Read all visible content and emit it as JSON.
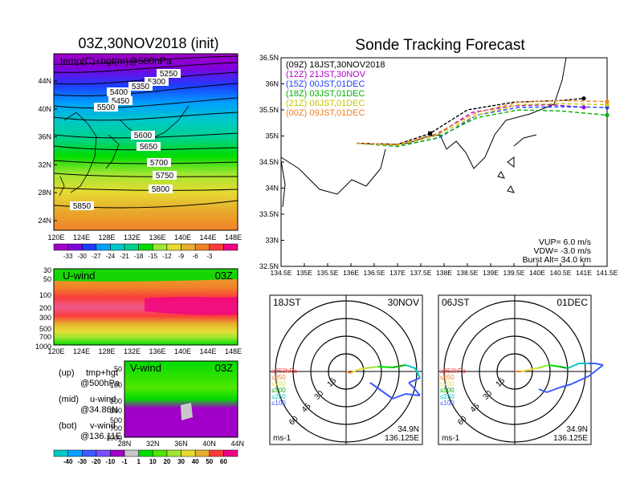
{
  "colors": {
    "temp_scale": [
      "#a000c8",
      "#8200dc",
      "#1e3cff",
      "#00a0ff",
      "#00c8c8",
      "#00d28c",
      "#00dc00",
      "#a0e632",
      "#e6dc32",
      "#e6af2d",
      "#f08228",
      "#fa3c3c",
      "#f00082"
    ],
    "wind_scale": [
      "#00c8c8",
      "#00a0ff",
      "#3c5aff",
      "#7850ff",
      "#a000c8",
      "#c8c8c8",
      "#00dc00",
      "#50e600",
      "#a0e632",
      "#e6dc32",
      "#e6af2d",
      "#fa3c3c",
      "#f00082"
    ],
    "tracks": {
      "09Z": "#000000",
      "12Z": "#b000c8",
      "15Z": "#2040ff",
      "18Z": "#00b000",
      "21Z": "#c8c800",
      "00Z": "#f08020"
    }
  },
  "left": {
    "map_title": "03Z,30NOV2018 (init)",
    "map_label": "temp(C)+hgt(m)@500hPa",
    "lat_labels": [
      "44N",
      "40N",
      "36N",
      "32N",
      "28N",
      "24N"
    ],
    "lon_labels": [
      "120E",
      "124E",
      "128E",
      "132E",
      "136E",
      "140E",
      "144E",
      "148E"
    ],
    "contour_labels": [
      "5250",
      "5300",
      "5350",
      "5400",
      "5450",
      "5500",
      "5600",
      "5650",
      "5700",
      "5750",
      "5800",
      "5850"
    ],
    "temp_ticks": [
      "-33",
      "-30",
      "-27",
      "-24",
      "-21",
      "-18",
      "-15",
      "-12",
      "-9",
      "-6",
      "-3"
    ],
    "uwind_label": "U-wind",
    "uwind_time": "03Z",
    "uwind_plevels": [
      "30",
      "50",
      "100",
      "200",
      "300",
      "500",
      "700",
      "1000"
    ],
    "vwind_label": "V-wind",
    "vwind_time": "03Z",
    "vwind_plevels": [
      "50",
      "100",
      "200",
      "300",
      "500",
      "700",
      "1000"
    ],
    "vwind_lat_labels": [
      "28N",
      "32N",
      "36N",
      "40N",
      "44N"
    ],
    "wind_ticks": [
      "-40",
      "-30",
      "-20",
      "-10",
      "-1",
      "1",
      "10",
      "20",
      "30",
      "40",
      "50",
      "60"
    ],
    "notes": [
      {
        "k": "(up)",
        "l1": "tmp+hgt",
        "l2": "@500hPa"
      },
      {
        "k": "(mid)",
        "l1": "u-wind",
        "l2": "@34.86N"
      },
      {
        "k": "(bot)",
        "l1": "v-wind",
        "l2": "@136.11E"
      }
    ]
  },
  "chart_data": {
    "type": "line",
    "title": "Sonde Tracking Forecast",
    "xlim": [
      134.5,
      141.5
    ],
    "ylim": [
      32.5,
      36.5
    ],
    "x_ticks": [
      "134.5E",
      "135E",
      "135.5E",
      "136E",
      "136.5E",
      "137E",
      "137.5E",
      "138E",
      "138.5E",
      "139E",
      "139.5E",
      "140E",
      "140.5E",
      "141E",
      "141.5E"
    ],
    "y_ticks": [
      "36.5N",
      "36N",
      "35.5N",
      "35N",
      "34.5N",
      "34N",
      "33.5N",
      "33N",
      "32.5N"
    ],
    "start": [
      136.125,
      34.86
    ],
    "series": [
      {
        "name": "(09Z)  18JST,30NOV2018",
        "key": "09Z",
        "points": [
          [
            136.125,
            34.86
          ],
          [
            137.0,
            34.84
          ],
          [
            137.7,
            35.05
          ],
          [
            138.5,
            35.5
          ],
          [
            139.5,
            35.65
          ],
          [
            140.5,
            35.68
          ],
          [
            141.0,
            35.72
          ]
        ]
      },
      {
        "name": "(12Z)  21JST,30NOV",
        "key": "12Z",
        "points": [
          [
            136.125,
            34.86
          ],
          [
            137.0,
            34.82
          ],
          [
            137.8,
            35.0
          ],
          [
            138.6,
            35.45
          ],
          [
            139.5,
            35.58
          ],
          [
            140.3,
            35.6
          ],
          [
            141.0,
            35.55
          ]
        ]
      },
      {
        "name": "(15Z)  00JST,01DEC",
        "key": "15Z",
        "points": [
          [
            136.125,
            34.86
          ],
          [
            137.0,
            34.8
          ],
          [
            137.9,
            34.97
          ],
          [
            138.7,
            35.4
          ],
          [
            139.6,
            35.55
          ],
          [
            140.5,
            35.56
          ],
          [
            141.5,
            35.55
          ]
        ]
      },
      {
        "name": "(18Z)  03JST,01DEC",
        "key": "18Z",
        "points": [
          [
            136.125,
            34.86
          ],
          [
            137.0,
            34.8
          ],
          [
            137.8,
            34.95
          ],
          [
            138.7,
            35.35
          ],
          [
            139.6,
            35.5
          ],
          [
            140.5,
            35.48
          ],
          [
            141.5,
            35.4
          ]
        ]
      },
      {
        "name": "(21Z)  06JST,01DEC",
        "key": "21Z",
        "points": [
          [
            136.125,
            34.86
          ],
          [
            137.0,
            34.82
          ],
          [
            137.8,
            35.0
          ],
          [
            138.7,
            35.4
          ],
          [
            139.6,
            35.6
          ],
          [
            140.5,
            35.62
          ],
          [
            141.5,
            35.6
          ]
        ]
      },
      {
        "name": "(00Z)  09JST,01DEC",
        "key": "00Z",
        "points": [
          [
            136.125,
            34.86
          ],
          [
            137.0,
            34.84
          ],
          [
            137.8,
            35.03
          ],
          [
            138.7,
            35.45
          ],
          [
            139.6,
            35.65
          ],
          [
            140.5,
            35.68
          ],
          [
            141.5,
            35.66
          ]
        ]
      }
    ],
    "params": [
      "VUP=  6.0  m/s",
      "VDW= -3.0  m/s",
      "Burst Alt= 34.0  km"
    ]
  },
  "hodographs": [
    {
      "label": "18JST",
      "date": "30NOV",
      "lat": "34.9N",
      "lon": "136.125E",
      "units": "ms-1"
    },
    {
      "label": "06JST",
      "date": "01DEC",
      "lat": "34.9N",
      "lon": "136.125E",
      "units": "ms-1"
    }
  ],
  "ring_labels": [
    "15",
    "30",
    "45",
    "60"
  ],
  "hodo_legend": [
    {
      "text": "≥850hPa",
      "color": "#fa3c3c"
    },
    {
      "text": "≤850",
      "color": "#f08228"
    },
    {
      "text": "≤700",
      "color": "#e6dc32"
    },
    {
      "text": "≤500",
      "color": "#00b000"
    },
    {
      "text": "≤250",
      "color": "#00c8c8"
    },
    {
      "text": "≤100",
      "color": "#3c5aff"
    }
  ]
}
